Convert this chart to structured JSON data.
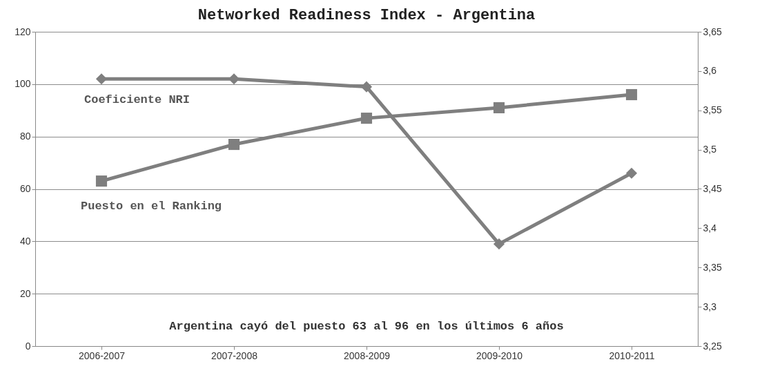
{
  "chart_data": {
    "type": "line",
    "title": "Networked Readiness Index - Argentina",
    "categories": [
      "2006-2007",
      "2007-2008",
      "2008-2009",
      "2009-2010",
      "2010-2011"
    ],
    "series": [
      {
        "name": "Puesto en el Ranking",
        "color": "#7f7f7f",
        "marker": "square",
        "values": [
          63,
          77,
          87,
          91,
          96
        ]
      },
      {
        "name": "Coeficiente NRI",
        "color": "#7f7f7f",
        "marker": "diamond",
        "axis": "y2",
        "values": [
          3.59,
          3.59,
          3.58,
          3.38,
          3.47
        ]
      }
    ],
    "ylim": [
      0,
      120
    ],
    "yticks": [
      0,
      20,
      40,
      60,
      80,
      100,
      120
    ],
    "y2lim": [
      3.25,
      3.65
    ],
    "y2ticks": [
      {
        "value": 3.25,
        "label": "3,25"
      },
      {
        "value": 3.3,
        "label": "3,3"
      },
      {
        "value": 3.35,
        "label": "3,35"
      },
      {
        "value": 3.4,
        "label": "3,4"
      },
      {
        "value": 3.45,
        "label": "3,45"
      },
      {
        "value": 3.5,
        "label": "3,5"
      },
      {
        "value": 3.55,
        "label": "3,55"
      },
      {
        "value": 3.6,
        "label": "3,6"
      },
      {
        "value": 3.65,
        "label": "3,65"
      }
    ],
    "grid": "y",
    "annotations": [
      "Argentina cayó del puesto 63 al 96 en los últimos 6 años"
    ]
  }
}
